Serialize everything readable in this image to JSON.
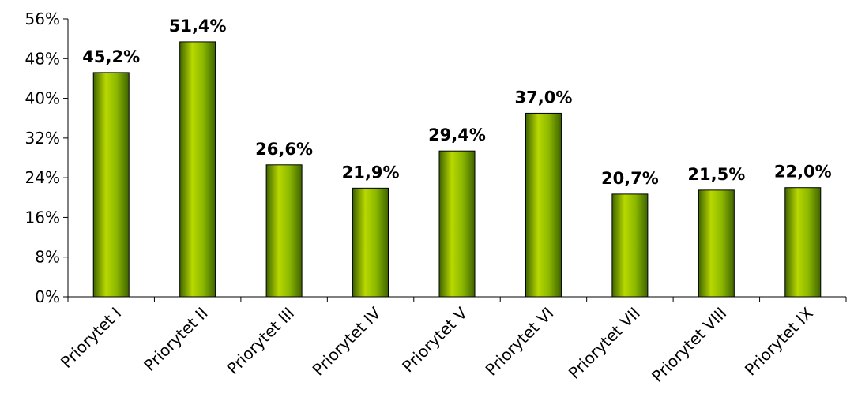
{
  "chart_data": {
    "type": "bar",
    "title": "",
    "xlabel": "",
    "ylabel": "",
    "categories": [
      "Priorytet I",
      "Priorytet II",
      "Priorytet III",
      "Priorytet IV",
      "Priorytet V",
      "Priorytet VI",
      "Priorytet VII",
      "Priorytet VIII",
      "Priorytet IX"
    ],
    "values": [
      45.2,
      51.4,
      26.6,
      21.9,
      29.4,
      37.0,
      20.7,
      21.5,
      22.0
    ],
    "data_labels": [
      "45,2%",
      "51,4%",
      "26,6%",
      "21,9%",
      "29,4%",
      "37,0%",
      "20,7%",
      "21,5%",
      "22,0%"
    ],
    "ylim": [
      0,
      56
    ],
    "yticks": [
      0,
      8,
      16,
      24,
      32,
      40,
      48,
      56
    ],
    "ytick_labels": [
      "0%",
      "8%",
      "16%",
      "24%",
      "32%",
      "40%",
      "48%",
      "56%"
    ],
    "grid": false,
    "legend": "none",
    "colors": {
      "bar_light": "#b8d800",
      "bar_mid": "#8cb800",
      "bar_dark": "#3f6400",
      "bar_edge": "#000000",
      "axis": "#000000"
    }
  }
}
